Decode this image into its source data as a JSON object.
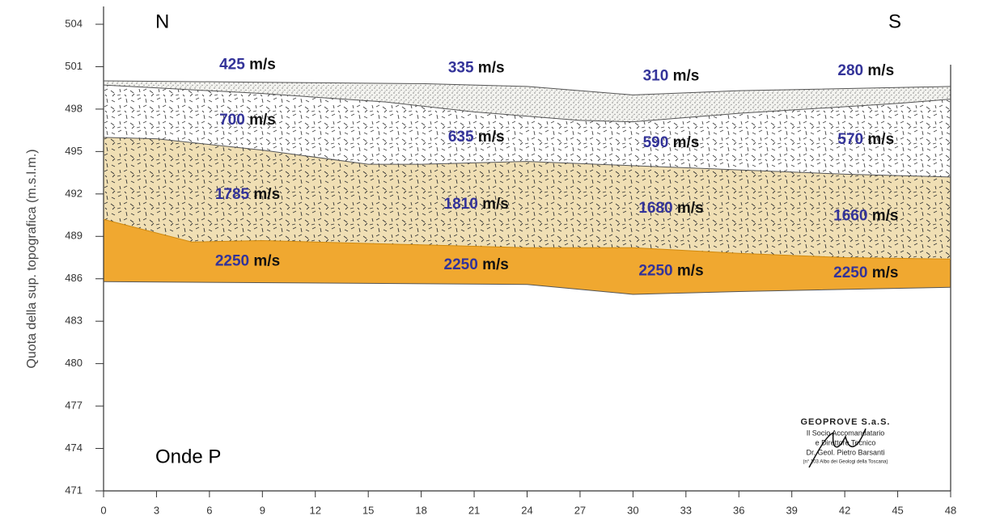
{
  "chart_data": {
    "type": "profile",
    "y_label": "Quota della sup. topografica (m.s.l.m.)",
    "xlim": [
      0,
      48
    ],
    "ylim": [
      471,
      504
    ],
    "xticks": [
      0,
      3,
      6,
      9,
      12,
      15,
      18,
      21,
      24,
      27,
      30,
      33,
      36,
      39,
      42,
      45,
      48
    ],
    "yticks": [
      471,
      474,
      477,
      480,
      483,
      486,
      489,
      492,
      495,
      498,
      501,
      504
    ],
    "boundaries": [
      {
        "x": [
          0,
          9,
          18,
          24,
          27,
          30,
          36,
          48
        ],
        "values": [
          500.0,
          499.9,
          499.8,
          499.6,
          499.3,
          499.0,
          499.3,
          499.6
        ]
      },
      {
        "x": [
          0,
          9,
          16,
          21,
          27,
          30,
          36,
          45,
          48
        ],
        "values": [
          499.7,
          499.1,
          498.5,
          497.8,
          497.2,
          497.1,
          497.7,
          498.4,
          498.7
        ]
      },
      {
        "x": [
          0,
          3,
          9,
          15,
          18,
          24,
          30,
          36,
          42,
          48
        ],
        "values": [
          496.0,
          495.9,
          495.1,
          494.1,
          494.1,
          494.3,
          494.0,
          493.7,
          493.4,
          493.2
        ]
      },
      {
        "x": [
          0,
          5,
          9,
          12,
          24,
          30,
          36,
          42,
          48
        ],
        "values": [
          490.2,
          488.6,
          488.7,
          488.6,
          488.2,
          488.2,
          487.8,
          487.5,
          487.4
        ]
      },
      {
        "x": [
          0,
          24,
          30,
          36,
          48
        ],
        "values": [
          485.8,
          485.6,
          484.9,
          485.1,
          485.4
        ]
      }
    ],
    "unit": "m/s",
    "layers": [
      {
        "velocities": [
          425,
          335,
          310,
          280
        ]
      },
      {
        "velocities": [
          700,
          635,
          590,
          570
        ]
      },
      {
        "velocities": [
          1785,
          1810,
          1680,
          1660
        ]
      },
      {
        "velocities": [
          2250,
          2250,
          2250,
          2250
        ]
      }
    ],
    "annotations": {
      "left": "N",
      "right": "S",
      "wave": "Onde P"
    },
    "stamp": [
      "GEOPROVE S.a.S.",
      "Il Socio Accomandatario",
      "e Direttore Tecnico",
      "Dr. Geol. Pietro Barsanti",
      "(n° 103 Albo dei Geologi della Toscana)"
    ]
  }
}
